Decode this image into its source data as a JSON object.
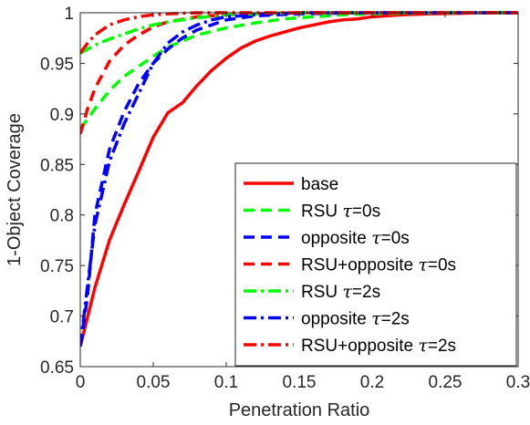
{
  "chart_data": {
    "type": "line",
    "xlabel": "Penetration Ratio",
    "ylabel": "1-Object Coverage",
    "xlim": [
      0,
      0.3
    ],
    "ylim": [
      0.65,
      1
    ],
    "xticks": [
      "0",
      "0.05",
      "0.1",
      "0.15",
      "0.2",
      "0.25",
      "0.3"
    ],
    "yticks": [
      "0.65",
      "0.7",
      "0.75",
      "0.8",
      "0.85",
      "0.9",
      "0.95",
      "1"
    ],
    "grid": false,
    "legend_position": "bottom-right",
    "series": [
      {
        "name": "base",
        "label_prefix": "base",
        "label_tau": "",
        "label_suffix": "",
        "color": "#ff0000",
        "dash": "solid",
        "x": [
          0,
          0.01,
          0.02,
          0.03,
          0.04,
          0.05,
          0.06,
          0.07,
          0.08,
          0.09,
          0.1,
          0.11,
          0.12,
          0.13,
          0.14,
          0.15,
          0.16,
          0.17,
          0.18,
          0.19,
          0.2,
          0.22,
          0.24,
          0.26,
          0.28,
          0.3
        ],
        "y": [
          0.67,
          0.728,
          0.775,
          0.81,
          0.843,
          0.877,
          0.901,
          0.911,
          0.928,
          0.943,
          0.955,
          0.965,
          0.972,
          0.977,
          0.981,
          0.985,
          0.988,
          0.991,
          0.993,
          0.994,
          0.996,
          0.998,
          0.999,
          0.9995,
          1.0,
          1.0
        ]
      },
      {
        "name": "RSU τ=0s",
        "label_prefix": "RSU ",
        "label_tau": "τ",
        "label_suffix": "=0s",
        "color": "#00ff00",
        "dash": "dashed",
        "x": [
          0,
          0.01,
          0.02,
          0.03,
          0.04,
          0.05,
          0.06,
          0.07,
          0.08,
          0.1,
          0.12,
          0.14,
          0.16,
          0.18,
          0.2,
          0.25,
          0.3
        ],
        "y": [
          0.885,
          0.905,
          0.923,
          0.937,
          0.947,
          0.957,
          0.966,
          0.972,
          0.978,
          0.985,
          0.99,
          0.994,
          0.996,
          0.998,
          0.999,
          1.0,
          1.0
        ]
      },
      {
        "name": "opposite τ=0s",
        "label_prefix": "opposite ",
        "label_tau": "τ",
        "label_suffix": "=0s",
        "color": "#0000ff",
        "dash": "dashed",
        "x": [
          0,
          0.005,
          0.01,
          0.02,
          0.03,
          0.04,
          0.05,
          0.06,
          0.07,
          0.08,
          0.09,
          0.1,
          0.12,
          0.15,
          0.2,
          0.3
        ],
        "y": [
          0.67,
          0.72,
          0.8,
          0.865,
          0.902,
          0.93,
          0.95,
          0.964,
          0.975,
          0.983,
          0.988,
          0.993,
          0.997,
          0.999,
          1.0,
          1.0
        ]
      },
      {
        "name": "RSU+opposite τ=0s",
        "label_prefix": "RSU+opposite ",
        "label_tau": "τ",
        "label_suffix": "=0s",
        "color": "#ff0000",
        "dash": "dashed",
        "x": [
          0,
          0.005,
          0.01,
          0.02,
          0.03,
          0.04,
          0.05,
          0.06,
          0.08,
          0.1,
          0.12,
          0.15,
          0.2,
          0.3
        ],
        "y": [
          0.88,
          0.905,
          0.925,
          0.952,
          0.968,
          0.978,
          0.986,
          0.991,
          0.996,
          0.998,
          0.999,
          1.0,
          1.0,
          1.0
        ]
      },
      {
        "name": "RSU τ=2s",
        "label_prefix": "RSU ",
        "label_tau": "τ",
        "label_suffix": "=2s",
        "color": "#00ff00",
        "dash": "dashdot",
        "x": [
          0,
          0.01,
          0.02,
          0.03,
          0.04,
          0.05,
          0.06,
          0.08,
          0.1,
          0.12,
          0.15,
          0.2,
          0.3
        ],
        "y": [
          0.96,
          0.968,
          0.974,
          0.979,
          0.984,
          0.988,
          0.991,
          0.995,
          0.998,
          0.999,
          1.0,
          1.0,
          1.0
        ]
      },
      {
        "name": "opposite τ=2s",
        "label_prefix": "opposite ",
        "label_tau": "τ",
        "label_suffix": "=2s",
        "color": "#0000ff",
        "dash": "dashdot",
        "x": [
          0,
          0.005,
          0.01,
          0.02,
          0.03,
          0.04,
          0.05,
          0.06,
          0.07,
          0.08,
          0.09,
          0.1,
          0.12,
          0.15,
          0.2,
          0.3
        ],
        "y": [
          0.67,
          0.73,
          0.79,
          0.853,
          0.89,
          0.92,
          0.95,
          0.97,
          0.981,
          0.988,
          0.993,
          0.996,
          0.998,
          1.0,
          1.0,
          1.0
        ]
      },
      {
        "name": "RSU+opposite τ=2s",
        "label_prefix": "RSU+opposite ",
        "label_tau": "τ",
        "label_suffix": "=2s",
        "color": "#ff0000",
        "dash": "dashdot",
        "x": [
          0,
          0.005,
          0.01,
          0.02,
          0.03,
          0.04,
          0.05,
          0.06,
          0.08,
          0.1,
          0.15,
          0.2,
          0.3
        ],
        "y": [
          0.96,
          0.97,
          0.978,
          0.988,
          0.993,
          0.996,
          0.998,
          0.999,
          1.0,
          1.0,
          1.0,
          1.0,
          1.0
        ]
      }
    ]
  }
}
